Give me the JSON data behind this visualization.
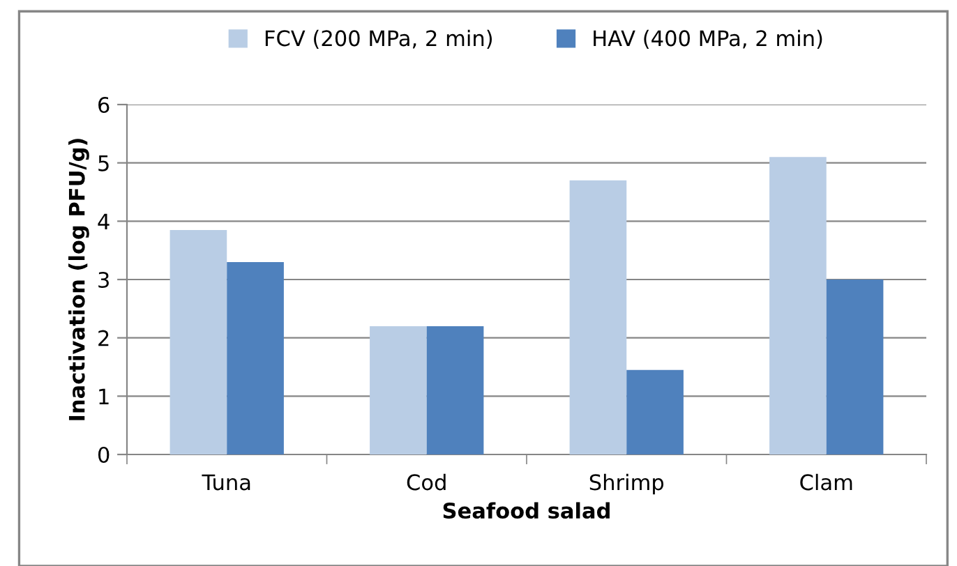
{
  "chart_data": {
    "type": "bar",
    "xlabel": "Seafood salad",
    "ylabel": "Inactivation (log PFU/g)",
    "categories": [
      "Tuna",
      "Cod",
      "Shrimp",
      "Clam"
    ],
    "series": [
      {
        "name": "FCV (200 MPa, 2 min)",
        "color": "#b9cde5",
        "values": [
          3.85,
          2.2,
          4.7,
          5.1
        ]
      },
      {
        "name": "HAV (400 MPa, 2 min)",
        "color": "#4f81bd",
        "values": [
          3.3,
          2.2,
          1.45,
          3.0
        ]
      }
    ],
    "ylim": [
      0,
      6
    ],
    "yticks": [
      0,
      1,
      2,
      3,
      4,
      5,
      6
    ],
    "grid": "y",
    "legend": "top"
  }
}
